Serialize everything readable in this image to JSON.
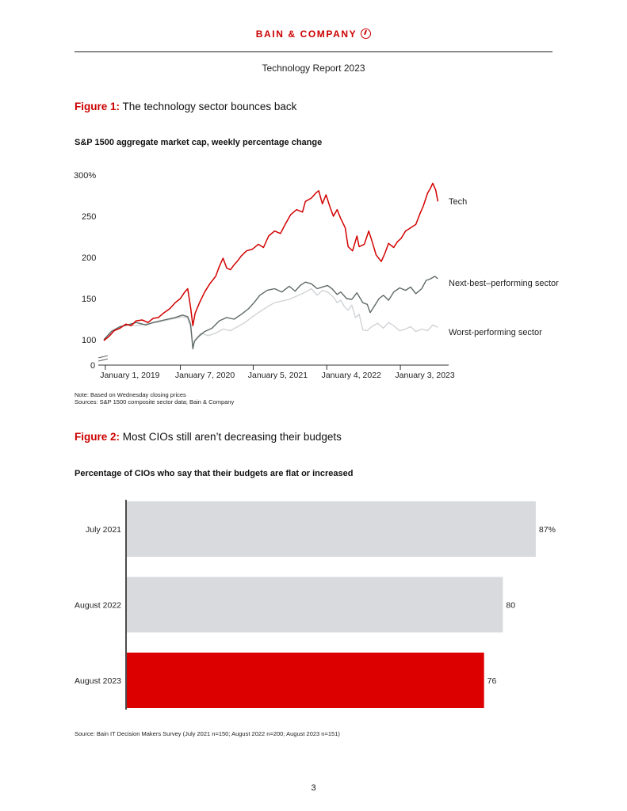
{
  "header": {
    "brand": "BAIN & COMPANY",
    "report_title": "Technology Report 2023"
  },
  "figure1": {
    "label": "Figure 1:",
    "title": "The technology sector bounces back",
    "chart_title": "S&P 1500 aggregate market cap, weekly percentage change",
    "note": "Note: Based on Wednesday closing prices",
    "sources": "Sources: S&P 1500 composite sector data; Bain & Company"
  },
  "figure2": {
    "label": "Figure 2:",
    "title": "Most CIOs still aren’t decreasing their budgets",
    "chart_title": "Percentage of CIOs who say that their budgets are flat or increased",
    "source": "Source: Bain IT Decision Makers Survey (July 2021 n=150; August 2022 n=200; August 2023 n=151)"
  },
  "page_number": "3",
  "chart_data": [
    {
      "type": "line",
      "title": "S&P 1500 aggregate market cap, weekly percentage change",
      "xlabel": "",
      "ylabel": "",
      "y_ticks": [
        "300%",
        "250",
        "200",
        "150",
        "100",
        "0"
      ],
      "y_tick_values": [
        300,
        250,
        200,
        150,
        100,
        0
      ],
      "ylim": [
        0,
        300
      ],
      "y_axis_break": true,
      "x_ticks": [
        "January 1, 2019",
        "January 7, 2020",
        "January 5, 2021",
        "January 4, 2022",
        "January 3, 2023"
      ],
      "x_tick_values": [
        2019.0,
        2020.02,
        2021.01,
        2022.01,
        2023.01
      ],
      "xlim": [
        2018.98,
        2023.58
      ],
      "colors": {
        "Tech": "#d20000",
        "Next-best–performing sector": "#5f6a66",
        "Worst-performing sector": "#d0d3d6"
      },
      "series": [
        {
          "name": "Tech",
          "points": [
            [
              2018.98,
              99
            ],
            [
              2019.05,
              104
            ],
            [
              2019.12,
              111
            ],
            [
              2019.2,
              114
            ],
            [
              2019.28,
              119
            ],
            [
              2019.35,
              117
            ],
            [
              2019.42,
              123
            ],
            [
              2019.5,
              124
            ],
            [
              2019.58,
              121
            ],
            [
              2019.65,
              126
            ],
            [
              2019.72,
              127
            ],
            [
              2019.8,
              133
            ],
            [
              2019.88,
              138
            ],
            [
              2019.95,
              145
            ],
            [
              2020.02,
              150
            ],
            [
              2020.08,
              158
            ],
            [
              2020.12,
              162
            ],
            [
              2020.16,
              139
            ],
            [
              2020.19,
              117
            ],
            [
              2020.22,
              132
            ],
            [
              2020.28,
              145
            ],
            [
              2020.35,
              158
            ],
            [
              2020.42,
              168
            ],
            [
              2020.5,
              177
            ],
            [
              2020.55,
              189
            ],
            [
              2020.6,
              199
            ],
            [
              2020.65,
              187
            ],
            [
              2020.7,
              185
            ],
            [
              2020.75,
              191
            ],
            [
              2020.8,
              196
            ],
            [
              2020.85,
              202
            ],
            [
              2020.92,
              208
            ],
            [
              2021.0,
              210
            ],
            [
              2021.08,
              216
            ],
            [
              2021.15,
              212
            ],
            [
              2021.22,
              226
            ],
            [
              2021.3,
              232
            ],
            [
              2021.38,
              229
            ],
            [
              2021.45,
              241
            ],
            [
              2021.52,
              252
            ],
            [
              2021.6,
              258
            ],
            [
              2021.68,
              255
            ],
            [
              2021.72,
              268
            ],
            [
              2021.8,
              272
            ],
            [
              2021.86,
              278
            ],
            [
              2021.9,
              281
            ],
            [
              2021.95,
              265
            ],
            [
              2022.0,
              276
            ],
            [
              2022.05,
              262
            ],
            [
              2022.1,
              250
            ],
            [
              2022.15,
              258
            ],
            [
              2022.2,
              247
            ],
            [
              2022.26,
              236
            ],
            [
              2022.3,
              213
            ],
            [
              2022.36,
              208
            ],
            [
              2022.42,
              226
            ],
            [
              2022.45,
              213
            ],
            [
              2022.52,
              216
            ],
            [
              2022.58,
              232
            ],
            [
              2022.62,
              221
            ],
            [
              2022.68,
              203
            ],
            [
              2022.75,
              195
            ],
            [
              2022.8,
              205
            ],
            [
              2022.85,
              217
            ],
            [
              2022.92,
              212
            ],
            [
              2022.97,
              219
            ],
            [
              2023.02,
              223
            ],
            [
              2023.08,
              232
            ],
            [
              2023.15,
              236
            ],
            [
              2023.22,
              240
            ],
            [
              2023.28,
              254
            ],
            [
              2023.32,
              262
            ],
            [
              2023.38,
              278
            ],
            [
              2023.42,
              284
            ],
            [
              2023.45,
              290
            ],
            [
              2023.49,
              282
            ],
            [
              2023.52,
              268
            ]
          ]
        },
        {
          "name": "Next-best–performing sector",
          "points": [
            [
              2018.98,
              100
            ],
            [
              2019.08,
              110
            ],
            [
              2019.2,
              116
            ],
            [
              2019.3,
              118
            ],
            [
              2019.42,
              121
            ],
            [
              2019.55,
              118
            ],
            [
              2019.65,
              121
            ],
            [
              2019.8,
              124
            ],
            [
              2019.95,
              127
            ],
            [
              2020.05,
              130
            ],
            [
              2020.12,
              128
            ],
            [
              2020.16,
              119
            ],
            [
              2020.19,
              89
            ],
            [
              2020.21,
              98
            ],
            [
              2020.27,
              104
            ],
            [
              2020.35,
              110
            ],
            [
              2020.45,
              114
            ],
            [
              2020.55,
              123
            ],
            [
              2020.65,
              127
            ],
            [
              2020.75,
              125
            ],
            [
              2020.85,
              131
            ],
            [
              2020.95,
              138
            ],
            [
              2021.03,
              146
            ],
            [
              2021.1,
              154
            ],
            [
              2021.2,
              160
            ],
            [
              2021.3,
              162
            ],
            [
              2021.4,
              158
            ],
            [
              2021.5,
              165
            ],
            [
              2021.58,
              159
            ],
            [
              2021.65,
              166
            ],
            [
              2021.72,
              170
            ],
            [
              2021.8,
              168
            ],
            [
              2021.88,
              162
            ],
            [
              2021.95,
              164
            ],
            [
              2022.02,
              166
            ],
            [
              2022.08,
              162
            ],
            [
              2022.15,
              155
            ],
            [
              2022.2,
              158
            ],
            [
              2022.28,
              150
            ],
            [
              2022.35,
              149
            ],
            [
              2022.42,
              157
            ],
            [
              2022.5,
              145
            ],
            [
              2022.56,
              143
            ],
            [
              2022.6,
              133
            ],
            [
              2022.65,
              140
            ],
            [
              2022.72,
              150
            ],
            [
              2022.78,
              154
            ],
            [
              2022.85,
              148
            ],
            [
              2022.92,
              158
            ],
            [
              2023.0,
              163
            ],
            [
              2023.08,
              160
            ],
            [
              2023.15,
              164
            ],
            [
              2023.22,
              156
            ],
            [
              2023.3,
              162
            ],
            [
              2023.36,
              172
            ],
            [
              2023.42,
              174
            ],
            [
              2023.48,
              177
            ],
            [
              2023.52,
              174
            ]
          ]
        },
        {
          "name": "Worst-performing sector",
          "points": [
            [
              2018.98,
              99
            ],
            [
              2019.08,
              108
            ],
            [
              2019.18,
              115
            ],
            [
              2019.3,
              118
            ],
            [
              2019.42,
              117
            ],
            [
              2019.55,
              119
            ],
            [
              2019.7,
              121
            ],
            [
              2019.85,
              124
            ],
            [
              2019.95,
              126
            ],
            [
              2020.05,
              128
            ],
            [
              2020.12,
              126
            ],
            [
              2020.16,
              114
            ],
            [
              2020.19,
              92
            ],
            [
              2020.22,
              100
            ],
            [
              2020.3,
              108
            ],
            [
              2020.4,
              105
            ],
            [
              2020.5,
              108
            ],
            [
              2020.6,
              113
            ],
            [
              2020.7,
              111
            ],
            [
              2020.8,
              116
            ],
            [
              2020.9,
              121
            ],
            [
              2021.0,
              128
            ],
            [
              2021.1,
              134
            ],
            [
              2021.2,
              140
            ],
            [
              2021.3,
              145
            ],
            [
              2021.4,
              147
            ],
            [
              2021.5,
              149
            ],
            [
              2021.6,
              153
            ],
            [
              2021.7,
              157
            ],
            [
              2021.8,
              162
            ],
            [
              2021.88,
              154
            ],
            [
              2021.95,
              160
            ],
            [
              2022.02,
              158
            ],
            [
              2022.1,
              152
            ],
            [
              2022.15,
              145
            ],
            [
              2022.2,
              148
            ],
            [
              2022.25,
              140
            ],
            [
              2022.3,
              136
            ],
            [
              2022.35,
              142
            ],
            [
              2022.4,
              127
            ],
            [
              2022.45,
              131
            ],
            [
              2022.5,
              112
            ],
            [
              2022.56,
              111
            ],
            [
              2022.62,
              116
            ],
            [
              2022.7,
              120
            ],
            [
              2022.78,
              114
            ],
            [
              2022.85,
              121
            ],
            [
              2022.92,
              117
            ],
            [
              2023.0,
              111
            ],
            [
              2023.08,
              113
            ],
            [
              2023.15,
              116
            ],
            [
              2023.22,
              110
            ],
            [
              2023.3,
              113
            ],
            [
              2023.38,
              111
            ],
            [
              2023.45,
              118
            ],
            [
              2023.52,
              115
            ]
          ]
        }
      ]
    },
    {
      "type": "bar",
      "orientation": "horizontal",
      "title": "Percentage of CIOs who say that their budgets are flat or increased",
      "xlabel": "",
      "ylabel": "",
      "xlim": [
        0,
        100
      ],
      "categories": [
        "July 2021",
        "August 2022",
        "August 2023"
      ],
      "values": [
        87,
        80,
        76
      ],
      "value_labels": [
        "87%",
        "80",
        "76"
      ],
      "colors": [
        "#d9dadd",
        "#d9dadd",
        "#dd0000"
      ]
    }
  ]
}
